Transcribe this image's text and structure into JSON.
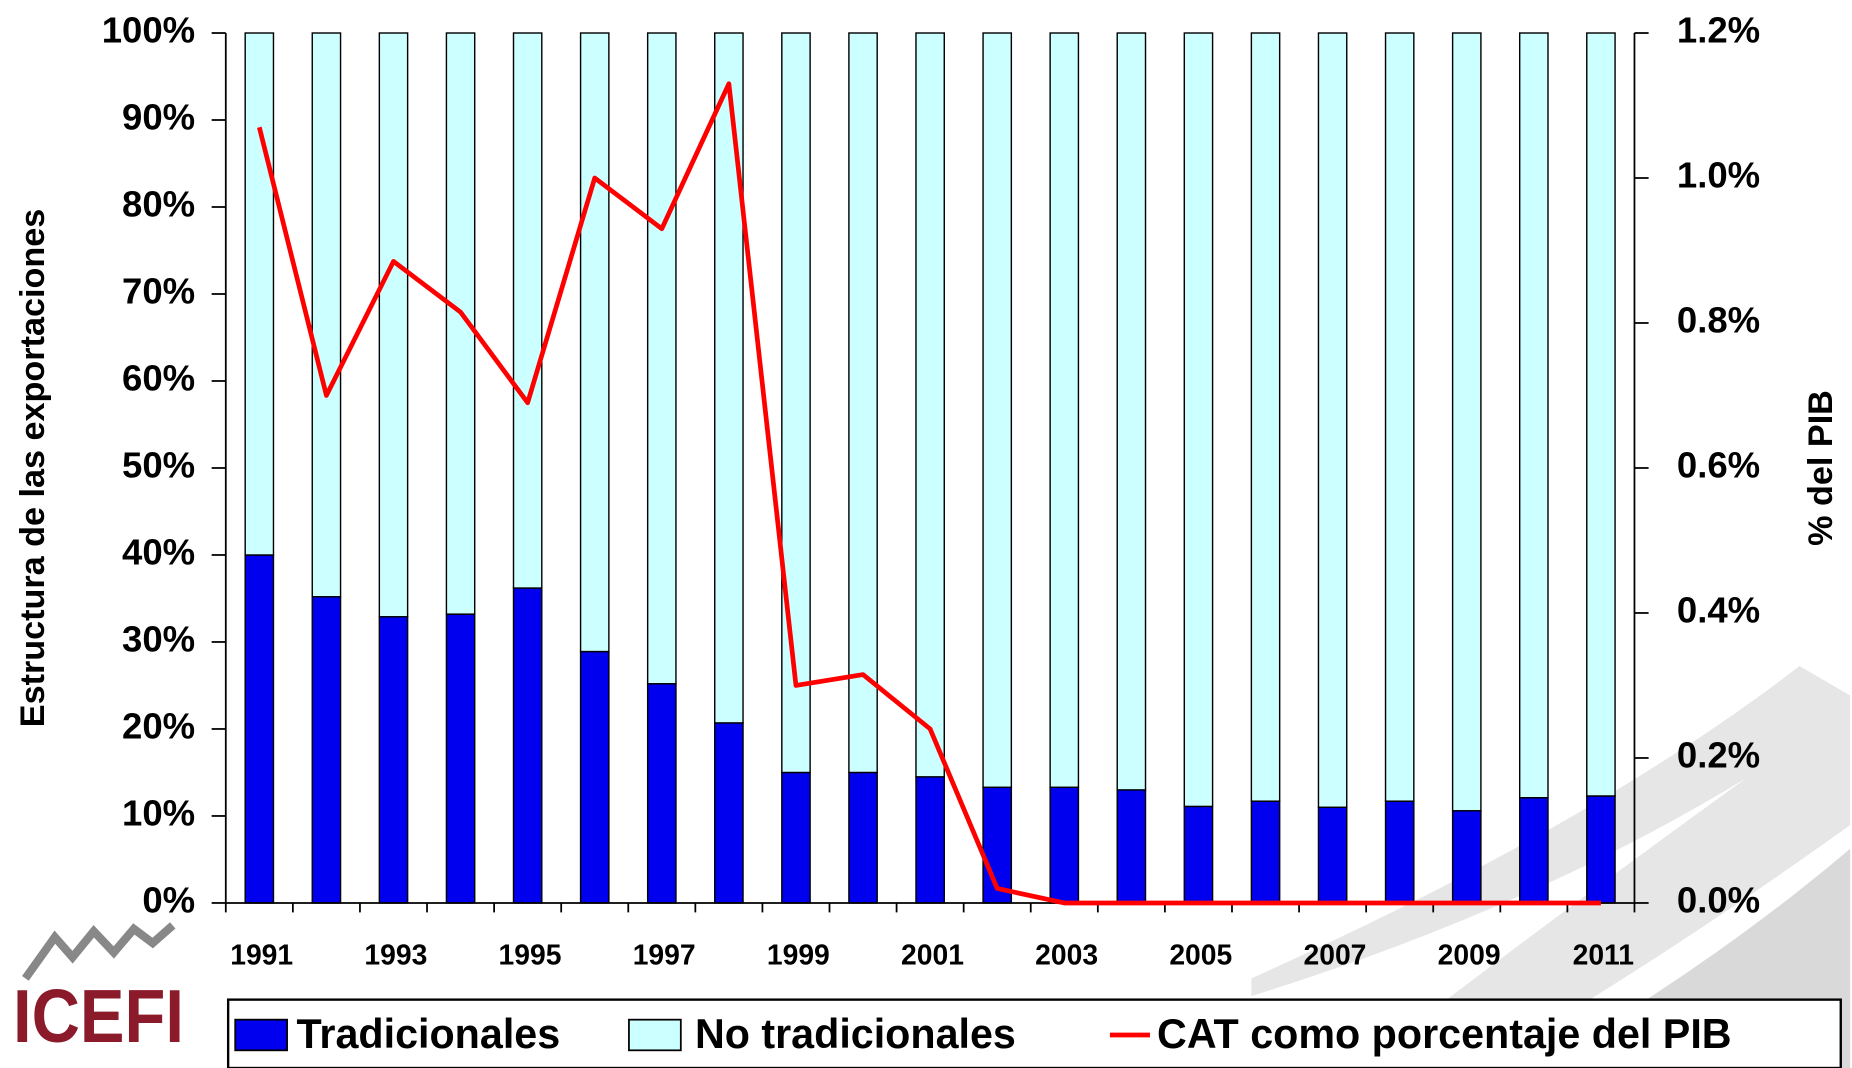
{
  "chart_data": {
    "type": "bar",
    "stacked": true,
    "categories": [
      "1991",
      null,
      "1993",
      null,
      "1995",
      null,
      "1997",
      null,
      "1999",
      null,
      "2001",
      null,
      "2003",
      null,
      "2005",
      null,
      "2007",
      null,
      "2009",
      null,
      "2011"
    ],
    "series": [
      {
        "name": "Tradicionales",
        "color": "#0000ee",
        "values": [
          40,
          35.2,
          32.9,
          33.2,
          36.2,
          28.9,
          25.2,
          20.7,
          15,
          15,
          14.5,
          13.3,
          13.3,
          13,
          11.1,
          11.7,
          11,
          11.7,
          10.6,
          12.1,
          12.3
        ]
      },
      {
        "name": "No tradicionales",
        "color": "#ccffff",
        "values": [
          60,
          64.8,
          67.1,
          66.8,
          63.8,
          71.1,
          74.8,
          79.3,
          85,
          85,
          85.5,
          86.7,
          86.7,
          87,
          88.9,
          88.3,
          89,
          88.3,
          89.4,
          87.9,
          87.7
        ]
      },
      {
        "name": "CAT como porcentaje del PIB",
        "color": "#ff0000",
        "type": "line",
        "axis": "y2",
        "values": [
          1.07,
          0.7,
          0.885,
          0.815,
          0.69,
          1.0,
          0.93,
          1.13,
          0.3,
          0.315,
          0.24,
          0.02,
          0,
          0,
          0,
          0,
          0,
          0,
          0,
          0,
          0
        ]
      }
    ],
    "ylabel": "Estructura de las exportaciones",
    "y2label": "% del PIB",
    "ylim": [
      0,
      100
    ],
    "yticks": [
      {
        "value": 0,
        "label": "0%"
      },
      {
        "value": 10,
        "label": "10%"
      },
      {
        "value": 20,
        "label": "20%"
      },
      {
        "value": 30,
        "label": "30%"
      },
      {
        "value": 40,
        "label": "40%"
      },
      {
        "value": 50,
        "label": "50%"
      },
      {
        "value": 60,
        "label": "60%"
      },
      {
        "value": 70,
        "label": "70%"
      },
      {
        "value": 80,
        "label": "80%"
      },
      {
        "value": 90,
        "label": "90%"
      },
      {
        "value": 100,
        "label": "100%"
      }
    ],
    "y2lim": [
      0,
      1.2
    ],
    "y2ticks": [
      {
        "value": 0,
        "label": "0.0%"
      },
      {
        "value": 0.2,
        "label": "0.2%"
      },
      {
        "value": 0.4,
        "label": "0.4%"
      },
      {
        "value": 0.6,
        "label": "0.6%"
      },
      {
        "value": 0.8,
        "label": "0.8%"
      },
      {
        "value": 1.0,
        "label": "1.0%"
      },
      {
        "value": 1.2,
        "label": "1.2%"
      }
    ],
    "legend": "bottom",
    "logo": "ICEFI"
  }
}
